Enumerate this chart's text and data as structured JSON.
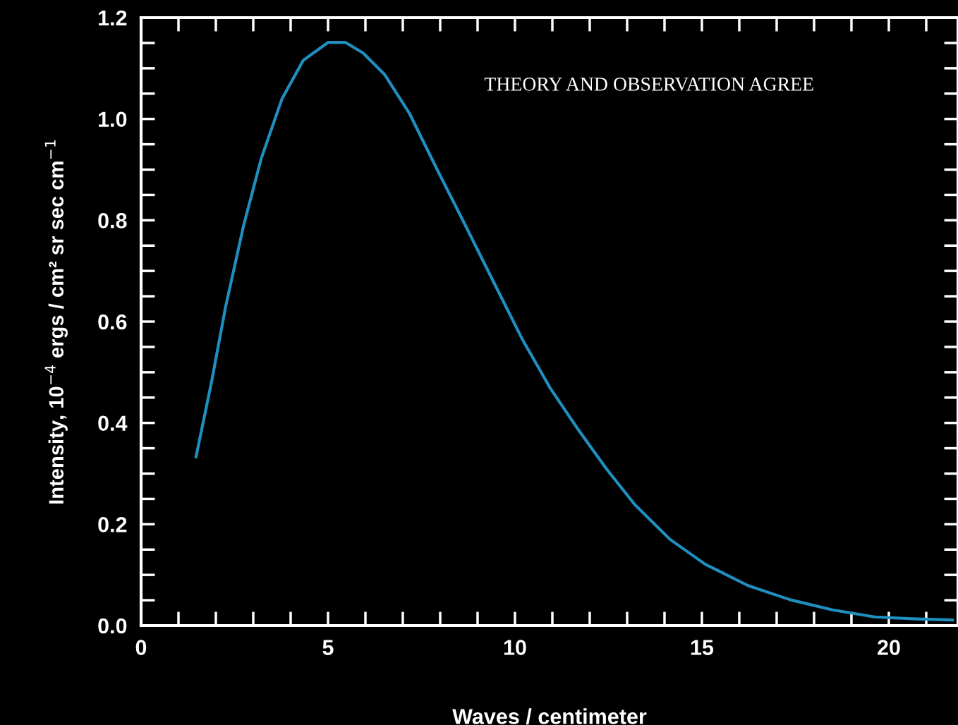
{
  "chart_data": {
    "type": "line",
    "xlabel": "Waves / centimeter",
    "ylabel": "Intensity, 10$^{−4}$ ergs / cm² sr sec cm$^{−1}$",
    "annotations": [
      "THEORY AND OBSERVATION AGREE"
    ],
    "series": [
      {
        "color": "#1f8fc0",
        "x": [
          1.47,
          1.89,
          2.26,
          2.74,
          3.21,
          3.77,
          4.34,
          5.0,
          5.47,
          5.94,
          6.51,
          7.17,
          7.92,
          8.68,
          9.43,
          10.19,
          10.94,
          11.7,
          12.45,
          13.2,
          14.15,
          15.09,
          16.23,
          17.36,
          18.49,
          19.62,
          20.75,
          21.7
        ],
        "values": [
          0.333,
          0.483,
          0.629,
          0.789,
          0.921,
          1.04,
          1.116,
          1.151,
          1.151,
          1.13,
          1.088,
          1.012,
          0.9,
          0.789,
          0.678,
          0.566,
          0.469,
          0.386,
          0.309,
          0.239,
          0.17,
          0.121,
          0.079,
          0.051,
          0.031,
          0.017,
          0.013,
          0.011
        ]
      }
    ],
    "xlim": [
      0,
      21.85
    ],
    "ylim": [
      0,
      1.2
    ],
    "xticks": [
      0,
      5,
      10,
      15,
      20
    ],
    "yticks": [
      {
        "value": 0,
        "label": "0.0"
      },
      {
        "value": 0.2,
        "label": "0.2"
      },
      {
        "value": 0.4,
        "label": "0.4"
      },
      {
        "value": 0.6,
        "label": "0.6"
      },
      {
        "value": 0.8,
        "label": "0.8"
      },
      {
        "value": 1.0,
        "label": "1.0"
      },
      {
        "value": 1.2,
        "label": "1.2"
      }
    ],
    "grid": false,
    "legend": false,
    "marker": "none",
    "line_style": "solid"
  }
}
